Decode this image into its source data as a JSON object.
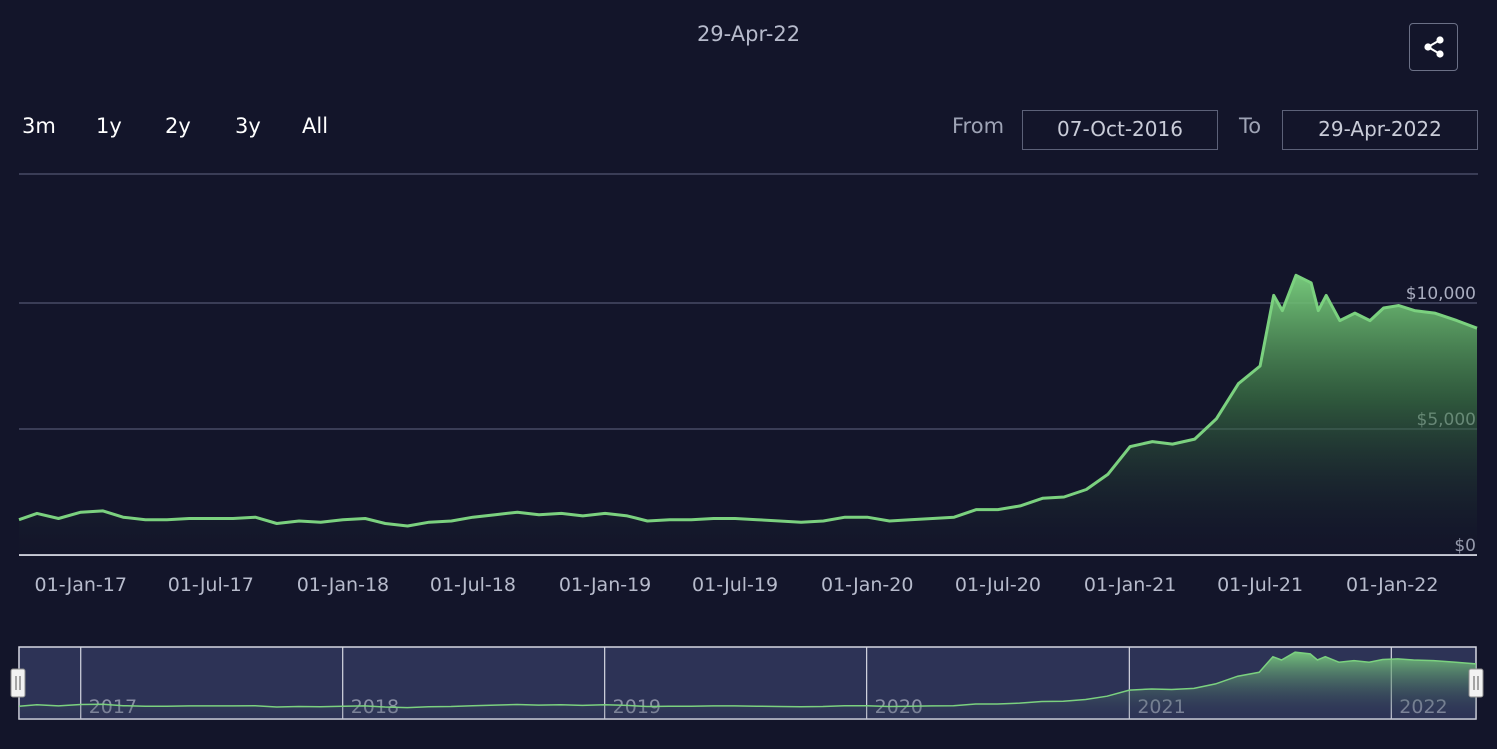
{
  "header": {
    "date": "29-Apr-22",
    "share_icon": "share-icon"
  },
  "range_buttons": [
    {
      "label": "3m"
    },
    {
      "label": "1y"
    },
    {
      "label": "2y"
    },
    {
      "label": "3y"
    },
    {
      "label": "All"
    }
  ],
  "date_range": {
    "from_label": "From",
    "from_value": "07-Oct-2016",
    "to_label": "To",
    "to_value": "29-Apr-2022"
  },
  "colors": {
    "background": "#13152a",
    "line": "#7bd17f",
    "gridline": "#474b64",
    "navigator_bg": "#2d3356"
  },
  "chart_data": {
    "type": "area",
    "title": "",
    "xlabel": "",
    "ylabel": "",
    "ylim": [
      0,
      10000
    ],
    "grid": true,
    "x_range": [
      "2016-10-07",
      "2022-04-29"
    ],
    "x_ticks": [
      "01-Jan-17",
      "01-Jul-17",
      "01-Jan-18",
      "01-Jul-18",
      "01-Jan-19",
      "01-Jul-19",
      "01-Jan-20",
      "01-Jul-20",
      "01-Jan-21",
      "01-Jul-21",
      "01-Jan-22"
    ],
    "y_ticks": [
      "$0",
      "$5,000",
      "$10,000"
    ],
    "navigator_labels": [
      "2017",
      "2018",
      "2019",
      "2020",
      "2021",
      "2022"
    ],
    "series": [
      {
        "points": [
          [
            "2016-10-07",
            1400
          ],
          [
            "2016-11-01",
            1650
          ],
          [
            "2016-12-01",
            1450
          ],
          [
            "2017-01-01",
            1700
          ],
          [
            "2017-02-01",
            1750
          ],
          [
            "2017-03-01",
            1500
          ],
          [
            "2017-04-01",
            1400
          ],
          [
            "2017-05-01",
            1400
          ],
          [
            "2017-06-01",
            1450
          ],
          [
            "2017-07-01",
            1450
          ],
          [
            "2017-08-01",
            1450
          ],
          [
            "2017-09-01",
            1500
          ],
          [
            "2017-10-01",
            1250
          ],
          [
            "2017-11-01",
            1350
          ],
          [
            "2017-12-01",
            1300
          ],
          [
            "2018-01-01",
            1400
          ],
          [
            "2018-02-01",
            1450
          ],
          [
            "2018-03-01",
            1250
          ],
          [
            "2018-04-01",
            1150
          ],
          [
            "2018-05-01",
            1300
          ],
          [
            "2018-06-01",
            1350
          ],
          [
            "2018-07-01",
            1500
          ],
          [
            "2018-08-01",
            1600
          ],
          [
            "2018-09-01",
            1700
          ],
          [
            "2018-10-01",
            1600
          ],
          [
            "2018-11-01",
            1650
          ],
          [
            "2018-12-01",
            1550
          ],
          [
            "2019-01-01",
            1650
          ],
          [
            "2019-02-01",
            1550
          ],
          [
            "2019-03-01",
            1350
          ],
          [
            "2019-04-01",
            1400
          ],
          [
            "2019-05-01",
            1400
          ],
          [
            "2019-06-01",
            1450
          ],
          [
            "2019-07-01",
            1450
          ],
          [
            "2019-08-01",
            1400
          ],
          [
            "2019-09-01",
            1350
          ],
          [
            "2019-10-01",
            1300
          ],
          [
            "2019-11-01",
            1350
          ],
          [
            "2019-12-01",
            1500
          ],
          [
            "2020-01-01",
            1500
          ],
          [
            "2020-02-01",
            1350
          ],
          [
            "2020-03-01",
            1400
          ],
          [
            "2020-04-01",
            1450
          ],
          [
            "2020-05-01",
            1500
          ],
          [
            "2020-06-01",
            1800
          ],
          [
            "2020-07-01",
            1800
          ],
          [
            "2020-08-01",
            1950
          ],
          [
            "2020-09-01",
            2250
          ],
          [
            "2020-10-01",
            2300
          ],
          [
            "2020-11-01",
            2600
          ],
          [
            "2020-12-01",
            3200
          ],
          [
            "2021-01-01",
            4300
          ],
          [
            "2021-02-01",
            4500
          ],
          [
            "2021-03-01",
            4400
          ],
          [
            "2021-04-01",
            4600
          ],
          [
            "2021-05-01",
            5400
          ],
          [
            "2021-06-01",
            6800
          ],
          [
            "2021-07-01",
            7500
          ],
          [
            "2021-07-20",
            10300
          ],
          [
            "2021-08-01",
            9700
          ],
          [
            "2021-08-20",
            11100
          ],
          [
            "2021-09-10",
            10800
          ],
          [
            "2021-09-20",
            9700
          ],
          [
            "2021-10-01",
            10300
          ],
          [
            "2021-10-20",
            9300
          ],
          [
            "2021-11-10",
            9600
          ],
          [
            "2021-12-01",
            9300
          ],
          [
            "2021-12-20",
            9800
          ],
          [
            "2022-01-10",
            9900
          ],
          [
            "2022-02-01",
            9700
          ],
          [
            "2022-03-01",
            9600
          ],
          [
            "2022-04-01",
            9300
          ],
          [
            "2022-04-29",
            9000
          ]
        ]
      }
    ]
  }
}
